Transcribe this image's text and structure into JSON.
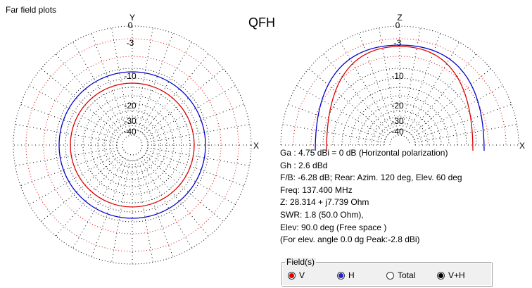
{
  "window": {
    "title": "Far field plots"
  },
  "plot_title": "QFH",
  "azimuth_plot": {
    "axis_top": "Y",
    "axis_right": "X",
    "ring_labels": [
      "0",
      "-3",
      "-10",
      "-20",
      "-30",
      "-40"
    ],
    "trace_colors": {
      "H": "#0000cc",
      "V": "#dd0000"
    }
  },
  "elevation_plot": {
    "axis_top": "Z",
    "axis_right": "X",
    "ring_labels": [
      "0",
      "-3",
      "-10",
      "-20",
      "-30",
      "-40"
    ]
  },
  "info_lines": [
    "Ga : 4.75 dBi = 0 dB  (Horizontal polarization)",
    "Gh : 2.6 dBd",
    "F/B: -6.28 dB; Rear: Azim. 120 deg,  Elev. 60 deg",
    "Freq: 137.400 MHz",
    "Z: 28.314 + j7.739 Ohm",
    "SWR: 1.8 (50.0 Ohm),",
    "Elev: 90.0 deg (Free space )",
    "(For elev. angle 0.0 dg Peak:-2.8 dBi)"
  ],
  "field_group": {
    "label": "Field(s)",
    "options": [
      {
        "label": "V",
        "color": "#dd0000",
        "selected": false
      },
      {
        "label": "H",
        "color": "#2222cc",
        "selected": false
      },
      {
        "label": "Total",
        "color": "",
        "selected": false
      },
      {
        "label": "V+H",
        "color": "#000000",
        "selected": true
      }
    ]
  }
}
